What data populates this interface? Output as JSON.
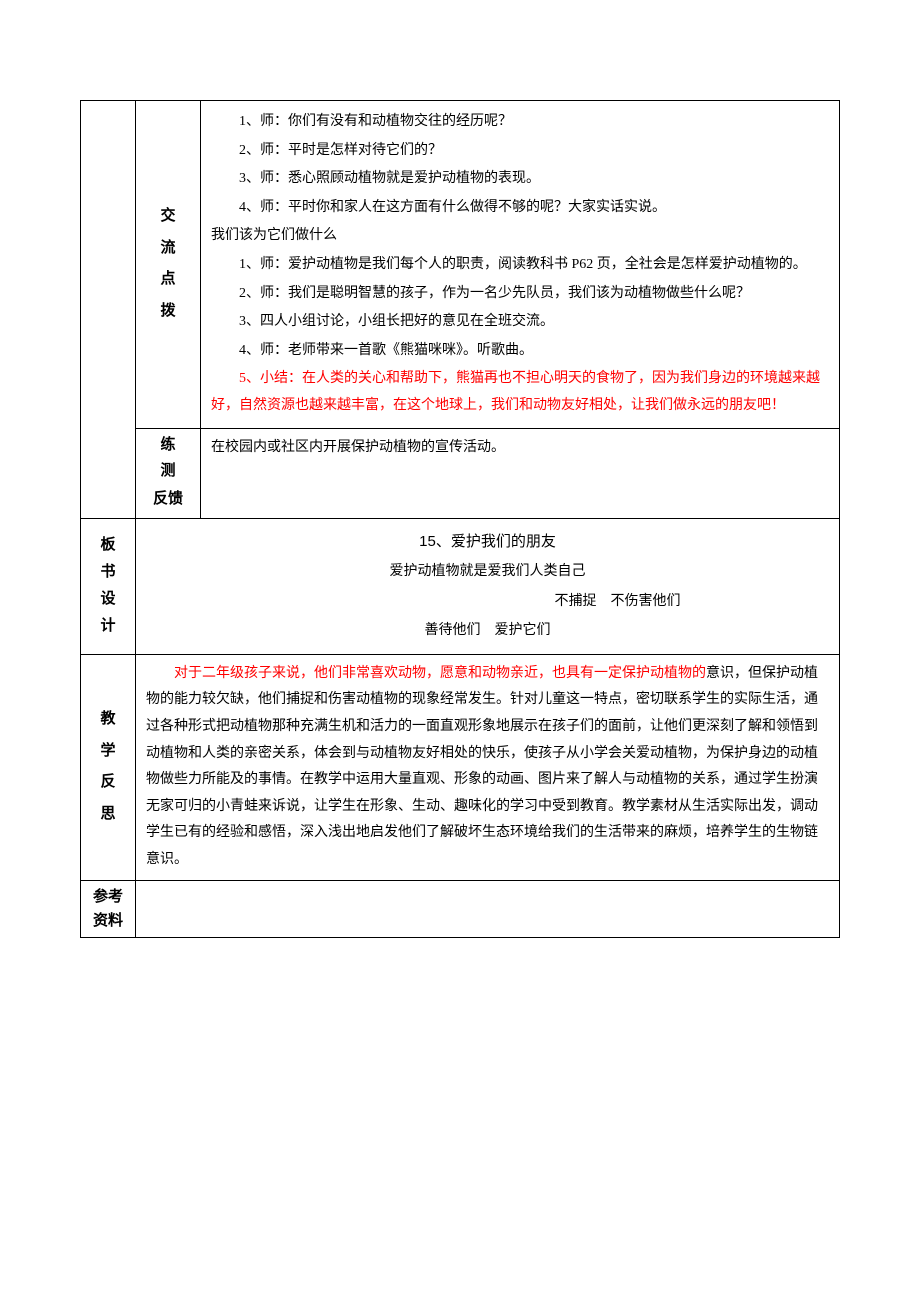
{
  "colors": {
    "text": "#000000",
    "highlight": "#ff0000",
    "border": "#000000",
    "background": "#ffffff"
  },
  "typography": {
    "body_font": "SimSun",
    "heading_font": "SimHei",
    "body_fontsize": 14,
    "heading_fontsize": 15,
    "line_height": 1.9
  },
  "section1": {
    "row_label": "交流点拨",
    "lines": [
      {
        "text": "1、师：你们有没有和动植物交往的经历呢？",
        "red": false
      },
      {
        "text": "2、师：平时是怎样对待它们的？",
        "red": false
      },
      {
        "text": "3、师：悉心照顾动植物就是爱护动植物的表现。",
        "red": false
      },
      {
        "text": "4、师：平时你和家人在这方面有什么做得不够的呢？大家实话实说。",
        "red": false
      }
    ],
    "subhead": "我们该为它们做什么",
    "lines2": [
      {
        "text": "1、师：爱护动植物是我们每个人的职责，阅读教科书 P62 页，全社会是怎样爱护动植物的。",
        "red": false
      },
      {
        "text": "2、师：我们是聪明智慧的孩子，作为一名少先队员，我们该为动植物做些什么呢？",
        "red": false
      },
      {
        "text": "3、四人小组讨论，小组长把好的意见在全班交流。",
        "red": false
      },
      {
        "text": "4、师：老师带来一首歌《熊猫咪咪》。听歌曲。",
        "red": false
      },
      {
        "text": "5、小结：在人类的关心和帮助下，熊猫再也不担心明天的食物了，因为我们身边的环境越来越好，自然资源也越来越丰富，在这个地球上，我们和动物友好相处，让我们做永远的朋友吧！",
        "red": true
      }
    ]
  },
  "section2": {
    "row_label": "练测反馈",
    "content": "在校园内或社区内开展保护动植物的宣传活动。"
  },
  "board": {
    "row_label": "板书设计",
    "title": "15、爱护我们的朋友",
    "line1": "爱护动植物就是爱我们人类自己",
    "line2": "不捕捉 不伤害他们",
    "line3": "善待他们 爱护它们"
  },
  "reflection": {
    "row_label": "教学反思",
    "lead_red": "对于二年级孩子来说，他们非常喜欢动物，愿意和动物亲近，也具有一定保护动植物的",
    "rest": "意识，但保护动植物的能力较欠缺，他们捕捉和伤害动植物的现象经常发生。针对儿童这一特点，密切联系学生的实际生活，通过各种形式把动植物那种充满生机和活力的一面直观形象地展示在孩子们的面前，让他们更深刻了解和领悟到动植物和人类的亲密关系，体会到与动植物友好相处的快乐，使孩子从小学会关爱动植物，为保护身边的动植物做些力所能及的事情。在教学中运用大量直观、形象的动画、图片来了解人与动植物的关系，通过学生扮演无家可归的小青蛙来诉说，让学生在形象、生动、趣味化的学习中受到教育。教学素材从生活实际出发，调动学生已有的经验和感悟，深入浅出地启发他们了解破坏生态环境给我们的生活带来的麻烦，培养学生的生物链意识。"
  },
  "refs": {
    "row_label": "参考资料",
    "content": ""
  }
}
